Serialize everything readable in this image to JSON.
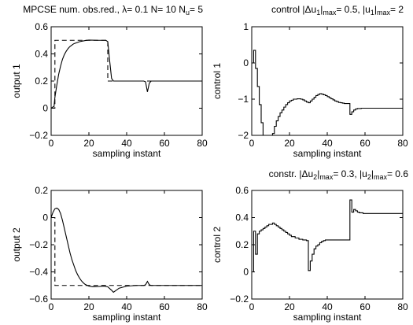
{
  "chart_data": [
    {
      "type": "line",
      "title": "MPCSE num. obs.red., λ= 0.1 N= 10 N_u= 5",
      "title_parts": {
        "a": "MPCSE num. obs.red., ",
        "lambda": "λ",
        "b": "= 0.1 N= 10 N",
        "sub": "u",
        "c": "= 5"
      },
      "xlabel": "sampling instant",
      "ylabel": "output 1",
      "xlim": [
        0,
        80
      ],
      "ylim": [
        -0.2,
        0.6
      ],
      "xticks": [
        0,
        20,
        40,
        60,
        80
      ],
      "yticks": [
        -0.2,
        0,
        0.2,
        0.4,
        0.6
      ],
      "ytick_labels": [
        "−0.2",
        "0",
        "0.2",
        "0.4",
        "0.6"
      ],
      "series": [
        {
          "style": "solid",
          "step": false,
          "points": [
            [
              0,
              0
            ],
            [
              1,
              0.01
            ],
            [
              1.5,
              0.01
            ],
            [
              2,
              0.08
            ],
            [
              3,
              0.17
            ],
            [
              4,
              0.25
            ],
            [
              5,
              0.31
            ],
            [
              6,
              0.36
            ],
            [
              7,
              0.395
            ],
            [
              8,
              0.42
            ],
            [
              9,
              0.44
            ],
            [
              10,
              0.455
            ],
            [
              12,
              0.475
            ],
            [
              15,
              0.49
            ],
            [
              18,
              0.498
            ],
            [
              20,
              0.502
            ],
            [
              25,
              0.5
            ],
            [
              29,
              0.5
            ],
            [
              30,
              0.49
            ],
            [
              31,
              0.35
            ],
            [
              32,
              0.22
            ],
            [
              33,
              0.2
            ],
            [
              40,
              0.2
            ],
            [
              49,
              0.2
            ],
            [
              50,
              0.195
            ],
            [
              51,
              0.12
            ],
            [
              52,
              0.185
            ],
            [
              53,
              0.2
            ],
            [
              60,
              0.2
            ],
            [
              80,
              0.2
            ]
          ]
        },
        {
          "style": "dashed",
          "step": false,
          "points": [
            [
              0,
              0
            ],
            [
              2,
              0
            ],
            [
              2,
              0.5
            ],
            [
              30,
              0.5
            ],
            [
              30,
              0.2
            ],
            [
              80,
              0.2
            ]
          ]
        }
      ]
    },
    {
      "type": "line",
      "title": "control |Δu_1|_max= 0.5, |u_1|_max= 2",
      "title_parts": {
        "a": "control |Δu",
        "sub1": "1",
        "b": "|",
        "sub2": "max",
        "c": "= 0.5, |u",
        "sub3": "1",
        "d": "|",
        "sub4": "max",
        "e": "= 2"
      },
      "xlabel": "sampling instant",
      "ylabel": "control 1",
      "xlim": [
        0,
        80
      ],
      "ylim": [
        -2,
        1
      ],
      "xticks": [
        0,
        20,
        40,
        60,
        80
      ],
      "yticks": [
        -2,
        -1,
        0,
        1
      ],
      "ytick_labels": [
        "−2",
        "−1",
        "0",
        "1"
      ],
      "series": [
        {
          "style": "solid",
          "step": true,
          "points": [
            [
              0,
              0
            ],
            [
              1,
              0.35
            ],
            [
              2,
              -0.15
            ],
            [
              3,
              -0.65
            ],
            [
              4,
              -1.15
            ],
            [
              5,
              -1.65
            ],
            [
              6,
              -2.05
            ],
            [
              11,
              -1.95
            ],
            [
              12,
              -1.75
            ],
            [
              13,
              -1.6
            ],
            [
              14,
              -1.48
            ],
            [
              15,
              -1.38
            ],
            [
              16,
              -1.3
            ],
            [
              17,
              -1.22
            ],
            [
              18,
              -1.15
            ],
            [
              19,
              -1.1
            ],
            [
              20,
              -1.05
            ],
            [
              21,
              -1.03
            ],
            [
              22,
              -1.0
            ],
            [
              24,
              -0.99
            ],
            [
              26,
              -1.0
            ],
            [
              27,
              -1.02
            ],
            [
              28,
              -1.05
            ],
            [
              29,
              -1.08
            ],
            [
              30,
              -1.1
            ],
            [
              31,
              -1.05
            ],
            [
              32,
              -1.0
            ],
            [
              33,
              -0.95
            ],
            [
              34,
              -0.9
            ],
            [
              35,
              -0.87
            ],
            [
              36,
              -0.85
            ],
            [
              37,
              -0.86
            ],
            [
              38,
              -0.88
            ],
            [
              39,
              -0.9
            ],
            [
              40,
              -0.93
            ],
            [
              41,
              -0.96
            ],
            [
              42,
              -0.99
            ],
            [
              43,
              -1.02
            ],
            [
              44,
              -1.05
            ],
            [
              45,
              -1.07
            ],
            [
              46,
              -1.09
            ],
            [
              47,
              -1.1
            ],
            [
              48,
              -1.11
            ],
            [
              49,
              -1.12
            ],
            [
              50,
              -1.12
            ],
            [
              51,
              -1.12
            ],
            [
              52,
              -1.42
            ],
            [
              53,
              -1.35
            ],
            [
              54,
              -1.3
            ],
            [
              55,
              -1.27
            ],
            [
              56,
              -1.26
            ],
            [
              58,
              -1.25
            ],
            [
              80,
              -1.25
            ]
          ]
        }
      ]
    },
    {
      "type": "line",
      "title": "",
      "xlabel": "sampling instant",
      "ylabel": "output 2",
      "xlim": [
        0,
        80
      ],
      "ylim": [
        -0.6,
        0.2
      ],
      "xticks": [
        0,
        20,
        40,
        60,
        80
      ],
      "yticks": [
        -0.6,
        -0.4,
        -0.2,
        0,
        0.2
      ],
      "ytick_labels": [
        "−0.6",
        "−0.4",
        "−0.2",
        "0",
        "0.2"
      ],
      "series": [
        {
          "style": "solid",
          "step": false,
          "points": [
            [
              0,
              0
            ],
            [
              1,
              0.04
            ],
            [
              2,
              0.065
            ],
            [
              3,
              0.07
            ],
            [
              4,
              0.06
            ],
            [
              5,
              0.03
            ],
            [
              6,
              -0.02
            ],
            [
              7,
              -0.08
            ],
            [
              8,
              -0.14
            ],
            [
              9,
              -0.2
            ],
            [
              10,
              -0.26
            ],
            [
              11,
              -0.31
            ],
            [
              12,
              -0.35
            ],
            [
              13,
              -0.39
            ],
            [
              14,
              -0.42
            ],
            [
              15,
              -0.445
            ],
            [
              16,
              -0.465
            ],
            [
              17,
              -0.48
            ],
            [
              18,
              -0.492
            ],
            [
              20,
              -0.505
            ],
            [
              22,
              -0.51
            ],
            [
              25,
              -0.508
            ],
            [
              28,
              -0.505
            ],
            [
              30,
              -0.51
            ],
            [
              32,
              -0.535
            ],
            [
              33,
              -0.55
            ],
            [
              34,
              -0.54
            ],
            [
              36,
              -0.52
            ],
            [
              40,
              -0.505
            ],
            [
              45,
              -0.5
            ],
            [
              49,
              -0.5
            ],
            [
              50,
              -0.495
            ],
            [
              51,
              -0.47
            ],
            [
              52,
              -0.495
            ],
            [
              53,
              -0.5
            ],
            [
              80,
              -0.5
            ]
          ]
        },
        {
          "style": "dashed",
          "step": false,
          "points": [
            [
              0,
              0
            ],
            [
              2,
              0
            ],
            [
              2,
              -0.5
            ],
            [
              80,
              -0.5
            ]
          ]
        }
      ]
    },
    {
      "type": "line",
      "title": "constr. |Δu_2|_max= 0.3, |u_2|_max= 0.6",
      "title_parts": {
        "a": "constr. |Δu",
        "sub1": "2",
        "b": "|",
        "sub2": "max",
        "c": "= 0.3, |u",
        "sub3": "2",
        "d": "|",
        "sub4": "max",
        "e": "= 0.6"
      },
      "xlabel": "sampling instant",
      "ylabel": "control 2",
      "xlim": [
        0,
        80
      ],
      "ylim": [
        -0.2,
        0.6
      ],
      "xticks": [
        0,
        20,
        40,
        60,
        80
      ],
      "yticks": [
        -0.2,
        0,
        0.2,
        0.4,
        0.6
      ],
      "ytick_labels": [
        "−0.2",
        "0",
        "0.2",
        "0.4",
        "0.6"
      ],
      "series": [
        {
          "style": "solid",
          "step": true,
          "points": [
            [
              0,
              0
            ],
            [
              1,
              0.3
            ],
            [
              2,
              0.13
            ],
            [
              3,
              0.28
            ],
            [
              4,
              0.3
            ],
            [
              5,
              0.31
            ],
            [
              6,
              0.32
            ],
            [
              7,
              0.33
            ],
            [
              8,
              0.34
            ],
            [
              9,
              0.35
            ],
            [
              10,
              0.35
            ],
            [
              11,
              0.36
            ],
            [
              12,
              0.35
            ],
            [
              13,
              0.34
            ],
            [
              14,
              0.33
            ],
            [
              15,
              0.32
            ],
            [
              16,
              0.31
            ],
            [
              17,
              0.3
            ],
            [
              18,
              0.29
            ],
            [
              19,
              0.28
            ],
            [
              20,
              0.27
            ],
            [
              21,
              0.26
            ],
            [
              22,
              0.26
            ],
            [
              23,
              0.25
            ],
            [
              25,
              0.24
            ],
            [
              27,
              0.235
            ],
            [
              29,
              0.23
            ],
            [
              30,
              0.01
            ],
            [
              31,
              0.08
            ],
            [
              32,
              0.13
            ],
            [
              33,
              0.17
            ],
            [
              34,
              0.19
            ],
            [
              35,
              0.2
            ],
            [
              36,
              0.215
            ],
            [
              37,
              0.225
            ],
            [
              38,
              0.23
            ],
            [
              39,
              0.235
            ],
            [
              40,
              0.235
            ],
            [
              44,
              0.235
            ],
            [
              48,
              0.235
            ],
            [
              51,
              0.235
            ],
            [
              52,
              0.53
            ],
            [
              53,
              0.44
            ],
            [
              54,
              0.46
            ],
            [
              55,
              0.45
            ],
            [
              56,
              0.44
            ],
            [
              57,
              0.435
            ],
            [
              59,
              0.43
            ],
            [
              80,
              0.43
            ]
          ]
        }
      ]
    }
  ]
}
